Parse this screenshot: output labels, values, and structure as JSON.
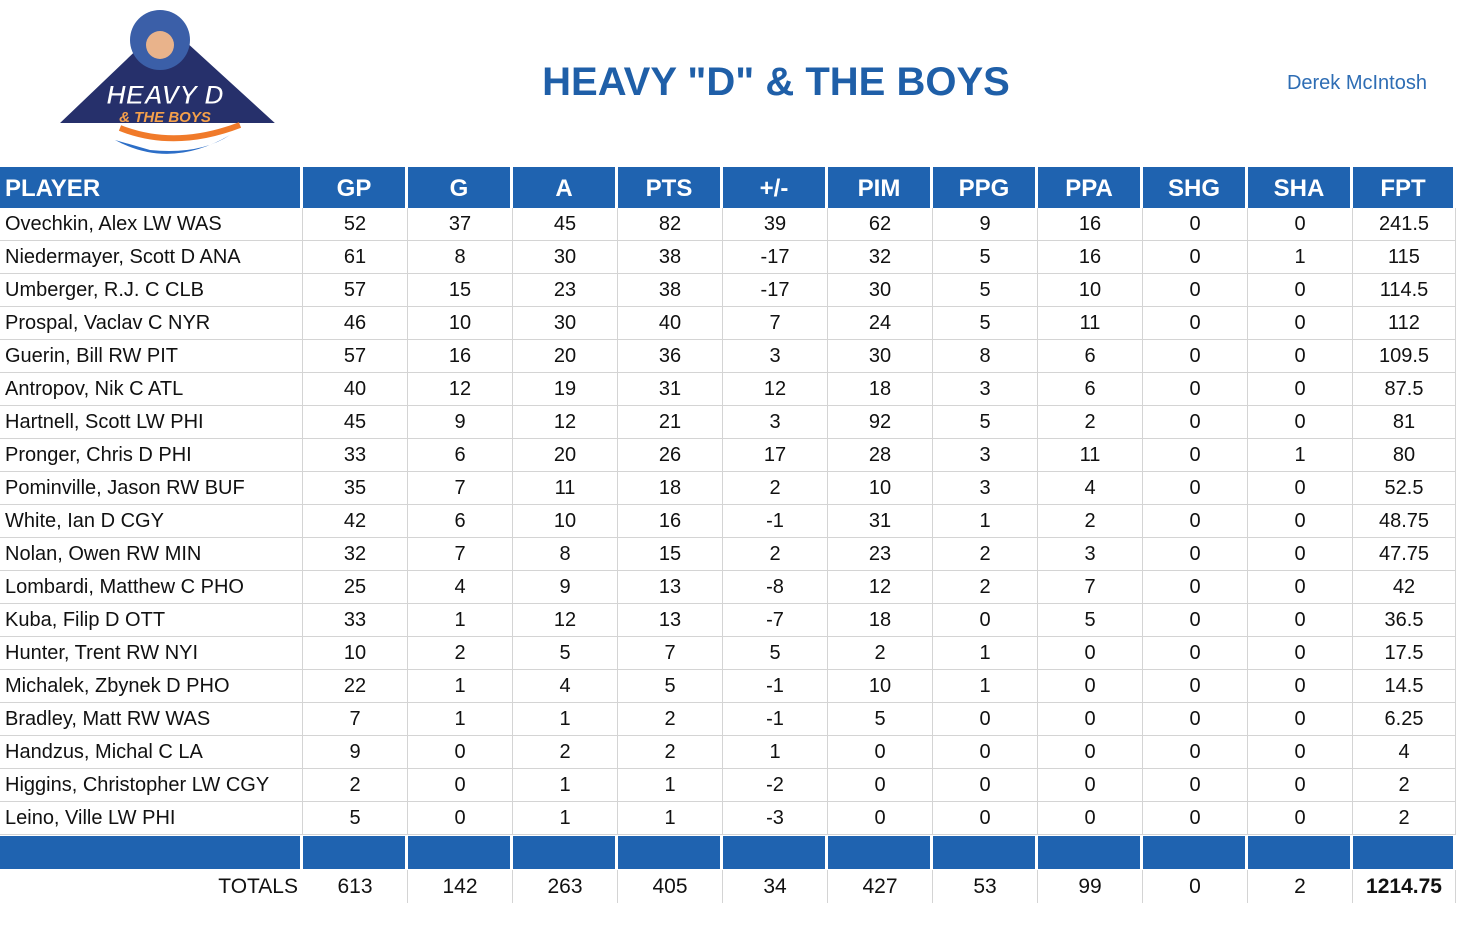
{
  "header": {
    "title": "HEAVY \"D\" & THE BOYS",
    "owner": "Derek McIntosh",
    "logo": {
      "line1": "HEAVY D",
      "line2": "& THE BOYS"
    }
  },
  "table": {
    "columns": [
      "PLAYER",
      "GP",
      "G",
      "A",
      "PTS",
      "+/-",
      "PIM",
      "PPG",
      "PPA",
      "SHG",
      "SHA",
      "FPT"
    ],
    "rows": [
      [
        "Ovechkin, Alex LW WAS",
        52,
        37,
        45,
        82,
        39,
        62,
        9,
        16,
        0,
        0,
        241.5
      ],
      [
        "Niedermayer, Scott D ANA",
        61,
        8,
        30,
        38,
        -17,
        32,
        5,
        16,
        0,
        1,
        115
      ],
      [
        "Umberger, R.J. C CLB",
        57,
        15,
        23,
        38,
        -17,
        30,
        5,
        10,
        0,
        0,
        114.5
      ],
      [
        "Prospal, Vaclav C NYR",
        46,
        10,
        30,
        40,
        7,
        24,
        5,
        11,
        0,
        0,
        112
      ],
      [
        "Guerin, Bill RW PIT",
        57,
        16,
        20,
        36,
        3,
        30,
        8,
        6,
        0,
        0,
        109.5
      ],
      [
        "Antropov, Nik C ATL",
        40,
        12,
        19,
        31,
        12,
        18,
        3,
        6,
        0,
        0,
        87.5
      ],
      [
        "Hartnell, Scott LW PHI",
        45,
        9,
        12,
        21,
        3,
        92,
        5,
        2,
        0,
        0,
        81
      ],
      [
        "Pronger, Chris D PHI",
        33,
        6,
        20,
        26,
        17,
        28,
        3,
        11,
        0,
        1,
        80
      ],
      [
        "Pominville, Jason RW BUF",
        35,
        7,
        11,
        18,
        2,
        10,
        3,
        4,
        0,
        0,
        52.5
      ],
      [
        "White, Ian D CGY",
        42,
        6,
        10,
        16,
        -1,
        31,
        1,
        2,
        0,
        0,
        48.75
      ],
      [
        "Nolan, Owen RW MIN",
        32,
        7,
        8,
        15,
        2,
        23,
        2,
        3,
        0,
        0,
        47.75
      ],
      [
        "Lombardi, Matthew C PHO",
        25,
        4,
        9,
        13,
        -8,
        12,
        2,
        7,
        0,
        0,
        42
      ],
      [
        "Kuba, Filip D OTT",
        33,
        1,
        12,
        13,
        -7,
        18,
        0,
        5,
        0,
        0,
        36.5
      ],
      [
        "Hunter, Trent RW NYI",
        10,
        2,
        5,
        7,
        5,
        2,
        1,
        0,
        0,
        0,
        17.5
      ],
      [
        "Michalek, Zbynek D PHO",
        22,
        1,
        4,
        5,
        -1,
        10,
        1,
        0,
        0,
        0,
        14.5
      ],
      [
        "Bradley, Matt RW WAS",
        7,
        1,
        1,
        2,
        -1,
        5,
        0,
        0,
        0,
        0,
        6.25
      ],
      [
        "Handzus, Michal C LA",
        9,
        0,
        2,
        2,
        1,
        0,
        0,
        0,
        0,
        0,
        4
      ],
      [
        "Higgins, Christopher LW CGY",
        2,
        0,
        1,
        1,
        -2,
        0,
        0,
        0,
        0,
        0,
        2
      ],
      [
        "Leino, Ville LW PHI",
        5,
        0,
        1,
        1,
        -3,
        0,
        0,
        0,
        0,
        0,
        2
      ]
    ],
    "totals": [
      "TOTALS",
      613,
      142,
      263,
      405,
      34,
      427,
      53,
      99,
      0,
      2,
      1214.75
    ]
  }
}
